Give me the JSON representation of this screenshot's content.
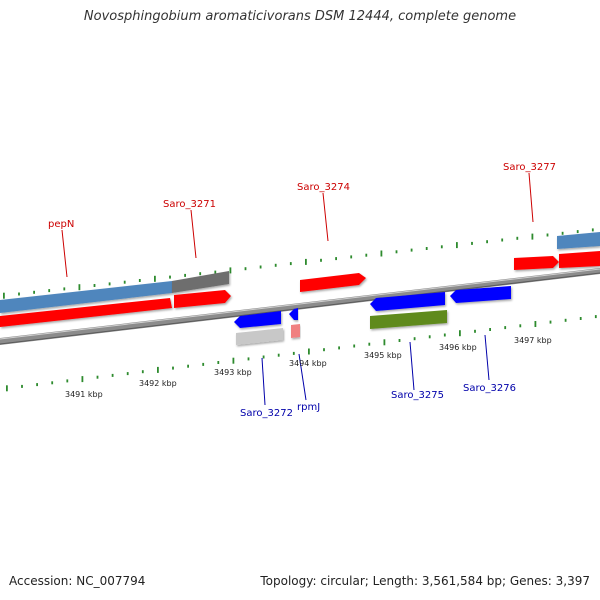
{
  "title": "Novosphingobium aromaticivorans DSM 12444, complete genome",
  "footer": {
    "accession": "Accession: NC_007794",
    "summary": "Topology: circular; Length: 3,561,584 bp; Genes: 3,397"
  },
  "colors": {
    "forward_cds": "#ff0000",
    "reverse_cds": "#0000ff",
    "gene_forward": "#4f86bd",
    "gene_grey": "#707070",
    "gene_green": "#5e8a1c",
    "gene_light_grey": "#c8c8c8",
    "gene_pink": "#f08080",
    "backbone": "#888888",
    "tick": "#2e8b2e",
    "label_forward": "#cc0000",
    "label_reverse": "#0000aa"
  },
  "kbp_labels": [
    "3491 kbp",
    "3492 kbp",
    "3493 kbp",
    "3494 kbp",
    "3495 kbp",
    "3496 kbp",
    "3497 kbp"
  ],
  "gene_labels_forward": [
    "pepN",
    "Saro_3271",
    "Saro_3274",
    "Saro_3277"
  ],
  "gene_labels_reverse": [
    "Saro_3272",
    "rpmJ",
    "Saro_3275",
    "Saro_3276"
  ]
}
